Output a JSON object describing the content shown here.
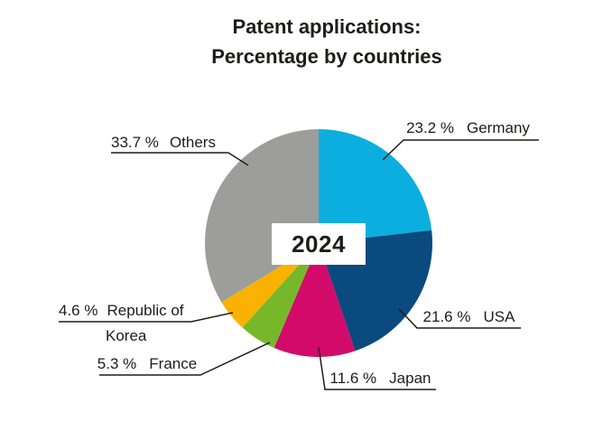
{
  "title": {
    "line1": "Patent applications:",
    "line2": "Percentage by countries"
  },
  "chart_data": {
    "type": "pie",
    "title": "Patent applications: Percentage by countries",
    "center_label": "2024",
    "unit": "%",
    "direction": "clockwise",
    "start_angle": "12-oclock",
    "text_color": "#1D1D1B",
    "slices": [
      {
        "label": "Germany",
        "value": 23.2,
        "value_text": "23.2 %",
        "color": "#0CAEDF"
      },
      {
        "label": "USA",
        "value": 21.6,
        "value_text": "21.6 %",
        "color": "#0A4A7E"
      },
      {
        "label": "Japan",
        "value": 11.6,
        "value_text": "11.6 %",
        "color": "#D20A69"
      },
      {
        "label": "France",
        "value": 5.3,
        "value_text": "5.3 %",
        "color": "#76B82A"
      },
      {
        "label": "Republic of Korea",
        "value": 4.6,
        "value_text": "4.6 %",
        "color": "#F9B200",
        "label_lines": [
          "Republic of",
          "Korea"
        ]
      },
      {
        "label": "Others",
        "value": 33.7,
        "value_text": "33.7 %",
        "color": "#9D9D9C"
      }
    ]
  }
}
